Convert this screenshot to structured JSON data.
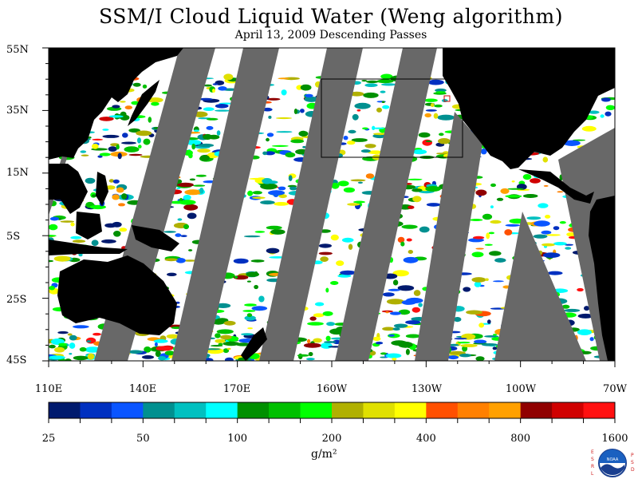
{
  "title": "SSM/I Cloud Liquid Water (Weng algorithm)",
  "subtitle": "April 13, 2009  Descending Passes",
  "lat_labels": [
    "55N",
    "35N",
    "15N",
    "5S",
    "25S",
    "45S"
  ],
  "lon_labels": [
    "110E",
    "140E",
    "170E",
    "160W",
    "130W",
    "100W",
    "70W"
  ],
  "colorbar": {
    "labels": [
      "25",
      "50",
      "100",
      "200",
      "400",
      "800",
      "1600"
    ],
    "colors": [
      "#001a6e",
      "#0030c0",
      "#0a55ff",
      "#009090",
      "#00c0c0",
      "#00ffff",
      "#009000",
      "#00c000",
      "#00ff00",
      "#b0b000",
      "#e0e000",
      "#ffff00",
      "#ff5000",
      "#ff8000",
      "#ffa000",
      "#900000",
      "#d00000",
      "#ff1010"
    ],
    "units": "g/m²"
  },
  "colors": {
    "land": "#000000",
    "missing": "#686868",
    "ocean": "#ffffff"
  },
  "logo": {
    "left_letters": [
      "E",
      "S",
      "R",
      "L"
    ],
    "right_letters": [
      "P",
      "S",
      "D"
    ],
    "center": "NOAA"
  }
}
